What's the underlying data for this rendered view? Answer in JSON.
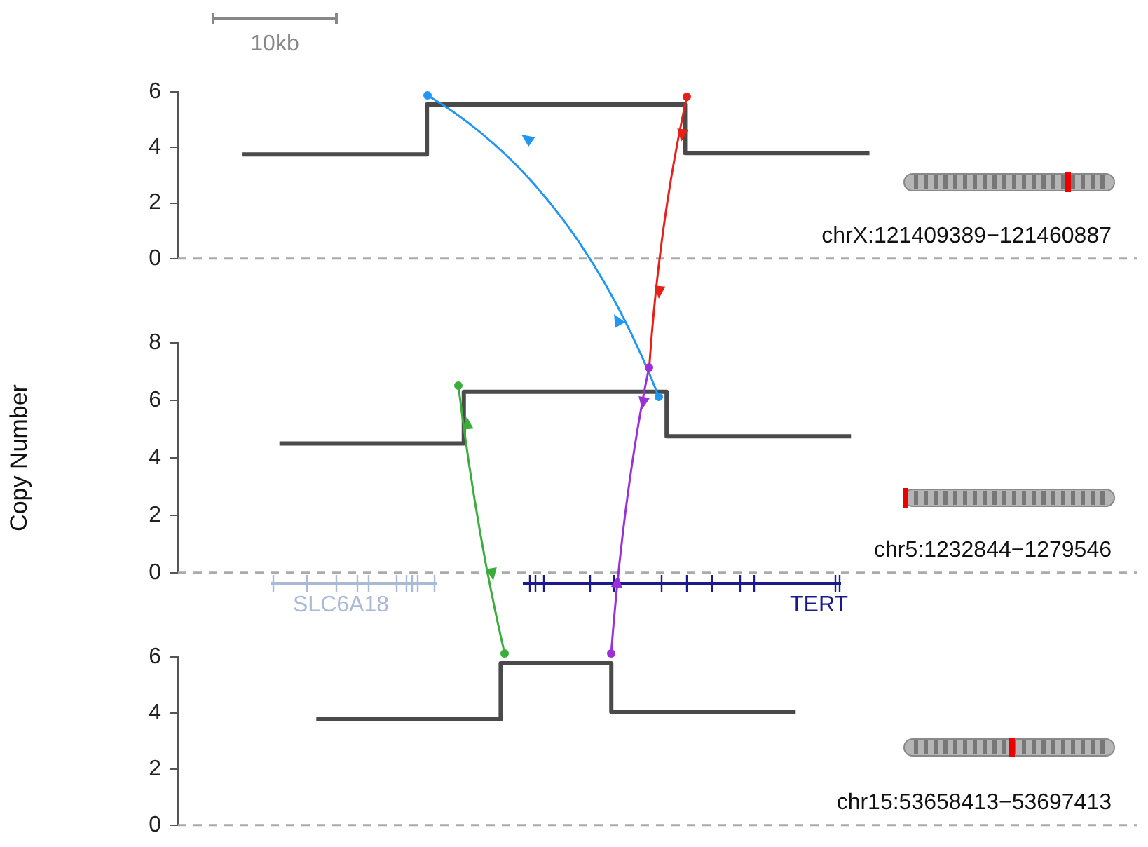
{
  "chart_data": [
    {
      "type": "step",
      "categories": [
        null,
        null,
        null,
        null,
        null,
        null,
        null,
        null,
        null,
        null,
        null,
        null,
        null,
        null,
        null,
        null,
        null,
        null,
        null,
        null,
        null,
        null,
        null,
        null,
        null,
        null,
        null,
        null,
        null,
        null,
        null,
        null,
        null,
        null,
        null,
        null,
        null,
        null,
        null,
        null,
        null,
        null,
        null,
        null,
        null,
        null,
        null,
        null,
        null,
        null,
        null,
        null
      ],
      "series": [
        {
          "color": "#4a4a4a",
          "values": [
            null,
            null,
            null,
            3.75,
            3.75,
            3.75,
            3.75,
            3.75,
            3.75,
            3.75,
            3.75,
            3.75,
            3.75,
            5.55,
            5.55,
            5.55,
            5.55,
            5.55,
            5.55,
            5.55,
            5.55,
            5.55,
            5.55,
            5.55,
            5.55,
            5.55,
            5.55,
            3.8,
            3.8,
            3.8,
            3.8,
            3.8,
            3.8,
            3.8,
            3.8,
            3.8,
            3.8,
            3.8,
            null,
            null,
            null,
            null,
            null,
            null,
            null,
            null,
            null,
            null,
            null,
            null,
            null,
            null
          ]
        }
      ],
      "ylim": [
        0,
        6
      ],
      "yticks": [
        0,
        2,
        4,
        6
      ],
      "tick_labels": "y",
      "marker": "none",
      "ref_lines": [
        {
          "axis": "y",
          "value": 0,
          "color": "#aaaaaa",
          "line_style": "dashed"
        }
      ],
      "annotations": [
        "10kb",
        "chrX:121409389−121460887"
      ]
    },
    {
      "type": "step",
      "categories": [
        null,
        null,
        null,
        null,
        null,
        null,
        null,
        null,
        null,
        null,
        null,
        null,
        null,
        null,
        null,
        null,
        null,
        null,
        null,
        null,
        null,
        null,
        null,
        null,
        null,
        null,
        null,
        null,
        null,
        null,
        null,
        null,
        null,
        null,
        null,
        null,
        null,
        null,
        null,
        null,
        null,
        null,
        null,
        null,
        null,
        null,
        null,
        null,
        null,
        null,
        null,
        null
      ],
      "series": [
        {
          "color": "#4a4a4a",
          "values": [
            null,
            null,
            null,
            null,
            null,
            4.5,
            4.5,
            4.5,
            4.5,
            4.5,
            4.5,
            4.5,
            4.5,
            4.5,
            4.5,
            6.3,
            6.3,
            6.3,
            6.3,
            6.3,
            6.3,
            6.3,
            6.3,
            6.3,
            6.3,
            6.3,
            4.75,
            4.75,
            4.75,
            4.75,
            4.75,
            4.75,
            4.75,
            4.75,
            4.75,
            4.75,
            4.75,
            null,
            null,
            null,
            null,
            null,
            null,
            null,
            null,
            null,
            null,
            null,
            null,
            null,
            null,
            null
          ]
        }
      ],
      "ylim": [
        0,
        8
      ],
      "yticks": [
        0,
        2,
        4,
        6,
        8
      ],
      "tick_labels": "y",
      "marker": "none",
      "ylabel": "Copy Number",
      "ref_lines": [
        {
          "axis": "y",
          "value": 0,
          "color": "#aaaaaa",
          "line_style": "dashed"
        }
      ],
      "annotations": [
        "SLC6A18",
        "TERT",
        "chr5:1232844−1279546"
      ]
    },
    {
      "type": "step",
      "categories": [
        null,
        null,
        null,
        null,
        null,
        null,
        null,
        null,
        null,
        null,
        null,
        null,
        null,
        null,
        null,
        null,
        null,
        null,
        null,
        null,
        null,
        null,
        null,
        null,
        null,
        null,
        null,
        null,
        null,
        null,
        null,
        null,
        null,
        null,
        null,
        null,
        null,
        null,
        null,
        null,
        null,
        null,
        null,
        null,
        null,
        null,
        null,
        null,
        null,
        null,
        null,
        null
      ],
      "series": [
        {
          "color": "#4a4a4a",
          "values": [
            null,
            null,
            null,
            null,
            null,
            null,
            null,
            3.78,
            3.78,
            3.78,
            3.78,
            3.78,
            3.78,
            3.78,
            3.78,
            3.78,
            3.78,
            5.78,
            5.78,
            5.78,
            5.78,
            5.78,
            5.78,
            4.04,
            4.04,
            4.04,
            4.04,
            4.04,
            4.04,
            4.04,
            4.04,
            4.04,
            4.04,
            4.04,
            null,
            null,
            null,
            null,
            null,
            null,
            null,
            null,
            null,
            null,
            null,
            null,
            null,
            null,
            null,
            null,
            null,
            null
          ]
        }
      ],
      "ylim": [
        0,
        6
      ],
      "yticks": [
        0,
        2,
        4,
        6
      ],
      "tick_labels": "y",
      "marker": "none",
      "ref_lines": [
        {
          "axis": "y",
          "value": 0,
          "color": "#aaaaaa",
          "line_style": "dashed"
        }
      ],
      "annotations": [
        "chr15:53658413−53697413"
      ]
    }
  ]
}
